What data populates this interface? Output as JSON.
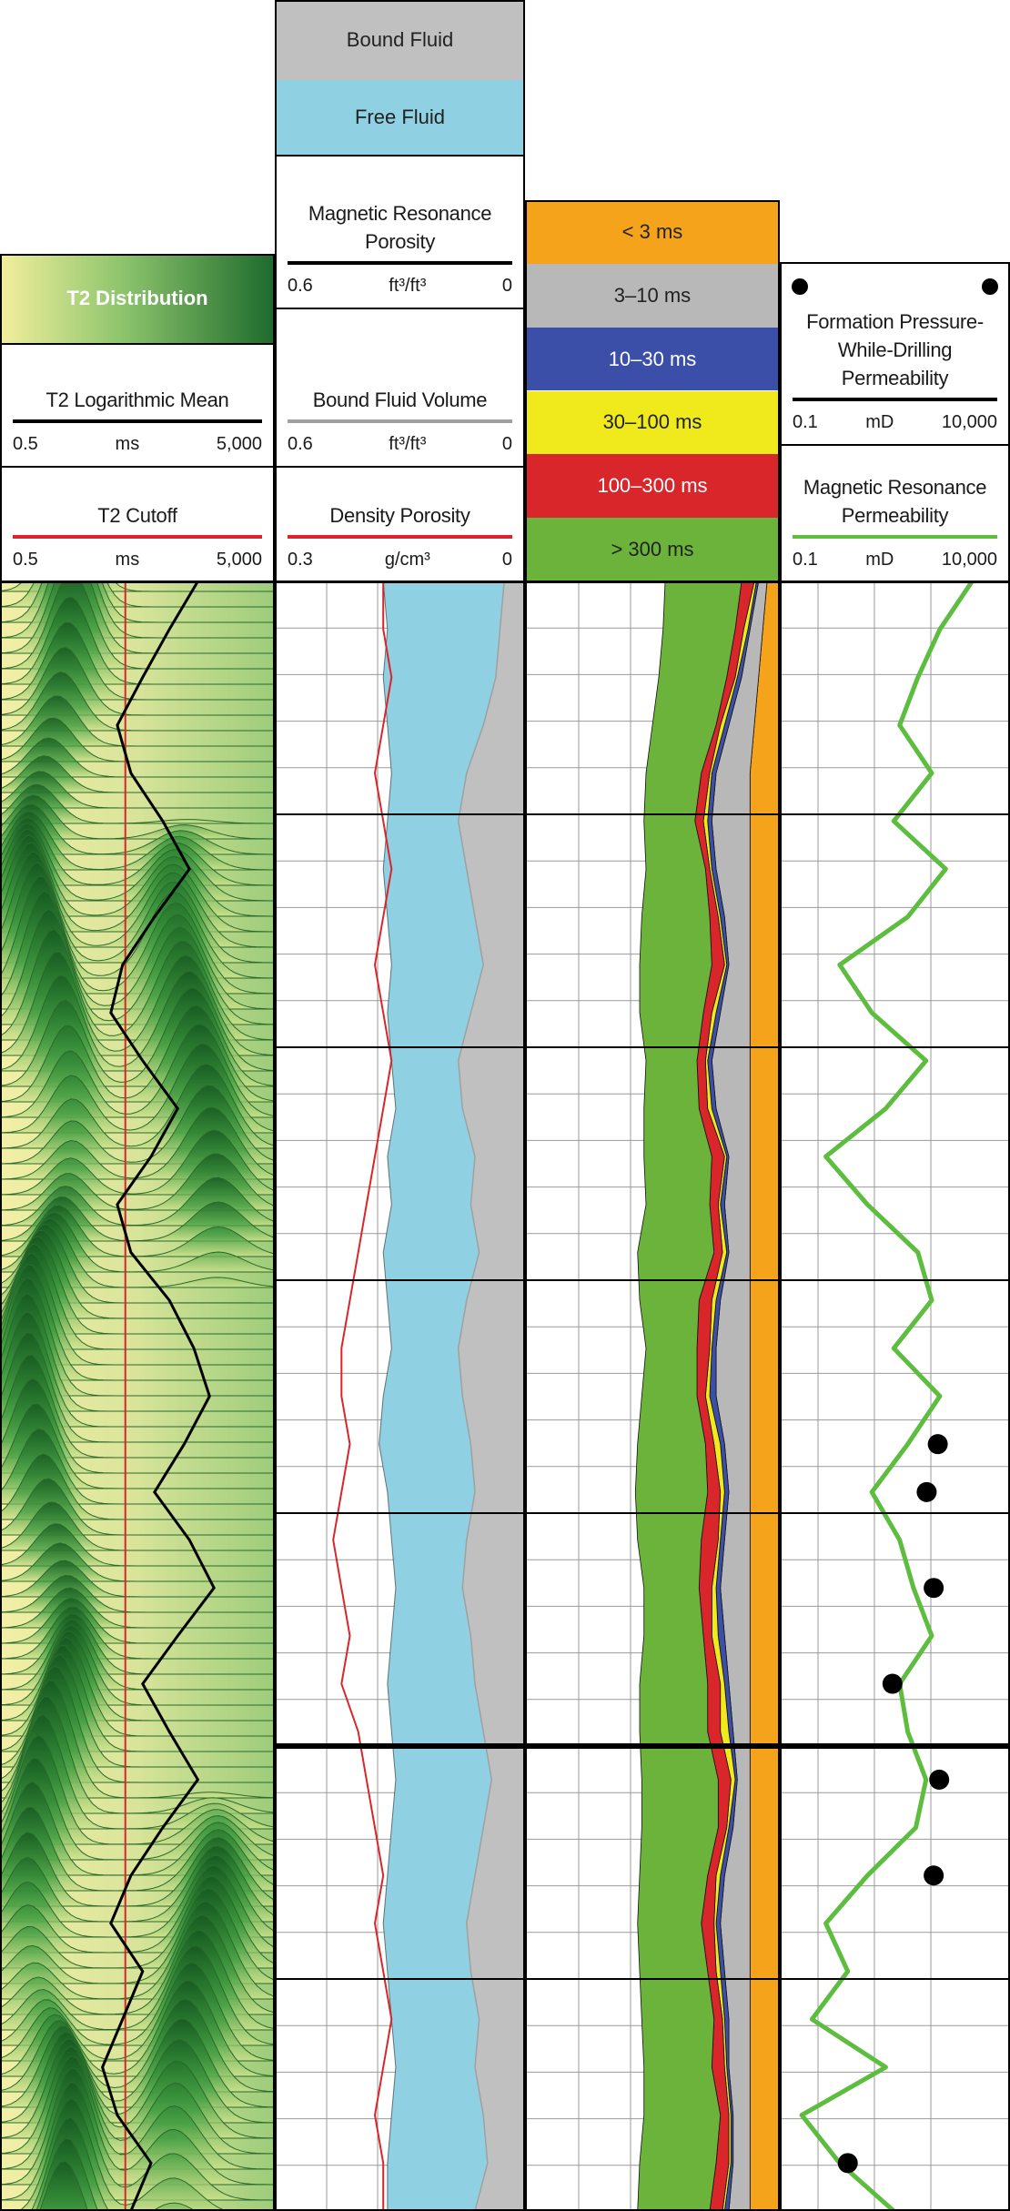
{
  "chart_data": {
    "type": "well-log",
    "tracks": [
      {
        "header_band": {
          "label": "T2 Distribution"
        },
        "curves": [
          {
            "name": "T2 Logarithmic Mean",
            "color": "#000000",
            "unit": "ms",
            "log": true,
            "xlim": [
              0.5,
              5000
            ],
            "xticks": [
              0.5,
              {
                "value": 5000,
                "label": "5,000"
              }
            ],
            "values": [
              400,
              150,
              60,
              25,
              40,
              120,
              300,
              90,
              30,
              20,
              60,
              200,
              80,
              25,
              40,
              150,
              350,
              600,
              250,
              90,
              300,
              700,
              200,
              60,
              150,
              400,
              120,
              40,
              20,
              60,
              30,
              15,
              25,
              80,
              40
            ]
          },
          {
            "name": "T2 Cutoff",
            "color": "#d8262a",
            "unit": "ms",
            "log": true,
            "xlim": [
              0.5,
              5000
            ],
            "xticks": [
              0.5,
              {
                "value": 5000,
                "label": "5,000"
              }
            ],
            "value": 33
          }
        ]
      },
      {
        "fills": [
          {
            "name": "Bound Fluid",
            "color": "#c0c0c0"
          },
          {
            "name": "Free Fluid",
            "color": "#8fd0e2"
          }
        ],
        "curves": [
          {
            "name": "Magnetic Resonance Porosity",
            "color": "#000000",
            "unit": "ft³/ft³",
            "xlim": [
              0.6,
              0
            ],
            "xticks": [
              0.6,
              0
            ],
            "values": [
              0.34,
              0.33,
              0.34,
              0.33,
              0.32,
              0.33,
              0.34,
              0.33,
              0.32,
              0.33,
              0.32,
              0.31,
              0.33,
              0.32,
              0.34,
              0.33,
              0.32,
              0.34,
              0.35,
              0.33,
              0.32,
              0.31,
              0.32,
              0.33,
              0.32,
              0.31,
              0.32,
              0.33,
              0.34,
              0.33,
              0.32,
              0.31,
              0.32,
              0.33,
              0.33
            ]
          },
          {
            "name": "Bound Fluid Volume",
            "color": "#a0a0a0",
            "unit": "ft³/ft³",
            "xlim": [
              0.6,
              0
            ],
            "xticks": [
              0.6,
              0
            ],
            "values": [
              0.05,
              0.06,
              0.07,
              0.1,
              0.14,
              0.16,
              0.14,
              0.12,
              0.1,
              0.13,
              0.16,
              0.15,
              0.12,
              0.13,
              0.11,
              0.14,
              0.16,
              0.15,
              0.13,
              0.12,
              0.14,
              0.15,
              0.13,
              0.12,
              0.1,
              0.08,
              0.1,
              0.12,
              0.14,
              0.13,
              0.11,
              0.12,
              0.1,
              0.09,
              0.12
            ]
          },
          {
            "name": "Density Porosity",
            "color": "#d8262a",
            "unit": "g/cm³",
            "xlim": [
              0.3,
              0
            ],
            "xticks": [
              0.3,
              0
            ],
            "values": [
              0.17,
              0.17,
              0.16,
              0.17,
              0.18,
              0.17,
              0.16,
              0.17,
              0.18,
              0.17,
              0.16,
              0.17,
              0.18,
              0.19,
              0.2,
              0.21,
              0.22,
              0.22,
              0.21,
              0.22,
              0.23,
              0.22,
              0.21,
              0.22,
              0.2,
              0.19,
              0.18,
              0.17,
              0.18,
              0.17,
              0.16,
              0.17,
              0.18,
              0.17,
              0.17
            ]
          }
        ]
      },
      {
        "xlim": [
          0.6,
          0
        ],
        "series": [
          {
            "name": "< 3 ms",
            "color": "#f5a31a",
            "values": [
              0.03,
              0.04,
              0.05,
              0.06,
              0.07,
              0.07,
              0.07,
              0.07,
              0.07,
              0.07,
              0.07,
              0.07,
              0.07,
              0.07,
              0.07,
              0.07,
              0.07,
              0.07,
              0.07,
              0.07,
              0.07,
              0.07,
              0.07,
              0.07,
              0.07,
              0.07,
              0.07,
              0.07,
              0.07,
              0.07,
              0.07,
              0.07,
              0.07,
              0.07,
              0.07
            ]
          },
          {
            "name": "3–10 ms",
            "color": "#b8b8b8",
            "values": [
              0.02,
              0.03,
              0.04,
              0.06,
              0.08,
              0.09,
              0.08,
              0.06,
              0.05,
              0.07,
              0.09,
              0.08,
              0.05,
              0.06,
              0.05,
              0.07,
              0.08,
              0.08,
              0.06,
              0.05,
              0.06,
              0.07,
              0.06,
              0.05,
              0.04,
              0.03,
              0.04,
              0.06,
              0.07,
              0.06,
              0.05,
              0.05,
              0.04,
              0.04,
              0.05
            ]
          },
          {
            "name": "10–30 ms",
            "color": "#3b4fa8",
            "values": [
              0.005,
              0.005,
              0.01,
              0.01,
              0.01,
              0.01,
              0.01,
              0.01,
              0.005,
              0.01,
              0.01,
              0.01,
              0.005,
              0.01,
              0.005,
              0.01,
              0.01,
              0.015,
              0.01,
              0.01,
              0.01,
              0.01,
              0.015,
              0.01,
              0.01,
              0.005,
              0.01,
              0.01,
              0.01,
              0.01,
              0.01,
              0.005,
              0.005,
              0.005,
              0.01
            ]
          },
          {
            "name": "30–100 ms",
            "color": "#f0ea1c",
            "values": [
              0.005,
              0.01,
              0.005,
              0.01,
              0.005,
              0.01,
              0.005,
              0.005,
              0.005,
              0.01,
              0.005,
              0.01,
              0.005,
              0.005,
              0.01,
              0.01,
              0.005,
              0.01,
              0.015,
              0.01,
              0.005,
              0.01,
              0.015,
              0.01,
              0.02,
              0.01,
              0.005,
              0.01,
              0.005,
              0.01,
              0.005,
              0.005,
              0.005,
              0.005,
              0.005
            ]
          },
          {
            "name": "100–300 ms",
            "color": "#d8262a",
            "values": [
              0.03,
              0.02,
              0.02,
              0.01,
              0.02,
              0.02,
              0.01,
              0.02,
              0.03,
              0.02,
              0.02,
              0.02,
              0.03,
              0.02,
              0.02,
              0.03,
              0.03,
              0.02,
              0.02,
              0.03,
              0.04,
              0.03,
              0.02,
              0.03,
              0.03,
              0.03,
              0.02,
              0.02,
              0.03,
              0.02,
              0.02,
              0.03,
              0.02,
              0.03,
              0.03
            ]
          },
          {
            "name": "> 300 ms",
            "color": "#6bb33a",
            "values": [
              0.18,
              0.17,
              0.16,
              0.15,
              0.13,
              0.12,
              0.14,
              0.16,
              0.17,
              0.15,
              0.12,
              0.13,
              0.16,
              0.15,
              0.18,
              0.14,
              0.12,
              0.13,
              0.16,
              0.17,
              0.15,
              0.13,
              0.14,
              0.16,
              0.16,
              0.18,
              0.18,
              0.16,
              0.15,
              0.16,
              0.17,
              0.16,
              0.18,
              0.18,
              0.17
            ]
          }
        ]
      },
      {
        "curves": [
          {
            "name": "Formation Pressure-While-Drilling Permeability",
            "color": "#000000",
            "unit": "mD",
            "log": true,
            "marker": "dot",
            "xlim": [
              0.1,
              10000
            ],
            "xticks": [
              0.1,
              {
                "value": 10000,
                "label": "10,000"
              }
            ],
            "values": [
              null,
              null,
              null,
              null,
              null,
              null,
              null,
              null,
              null,
              null,
              null,
              null,
              null,
              null,
              null,
              null,
              null,
              null,
              270,
              155,
              null,
              220,
              null,
              28,
              null,
              290,
              null,
              220,
              null,
              null,
              null,
              null,
              null,
              3,
              null
            ]
          },
          {
            "name": "Magnetic Resonance Permeability",
            "color": "#5cbd3e",
            "unit": "mD",
            "log": true,
            "xlim": [
              0.1,
              10000
            ],
            "xticks": [
              0.1,
              {
                "value": 10000,
                "label": "10,000"
              }
            ],
            "values": [
              1500,
              300,
              100,
              40,
              200,
              30,
              400,
              60,
              2,
              10,
              150,
              20,
              1,
              8,
              100,
              200,
              30,
              300,
              60,
              10,
              40,
              80,
              200,
              40,
              60,
              150,
              90,
              8,
              1,
              3,
              0.5,
              20,
              0.3,
              2,
              30
            ]
          }
        ]
      }
    ]
  }
}
